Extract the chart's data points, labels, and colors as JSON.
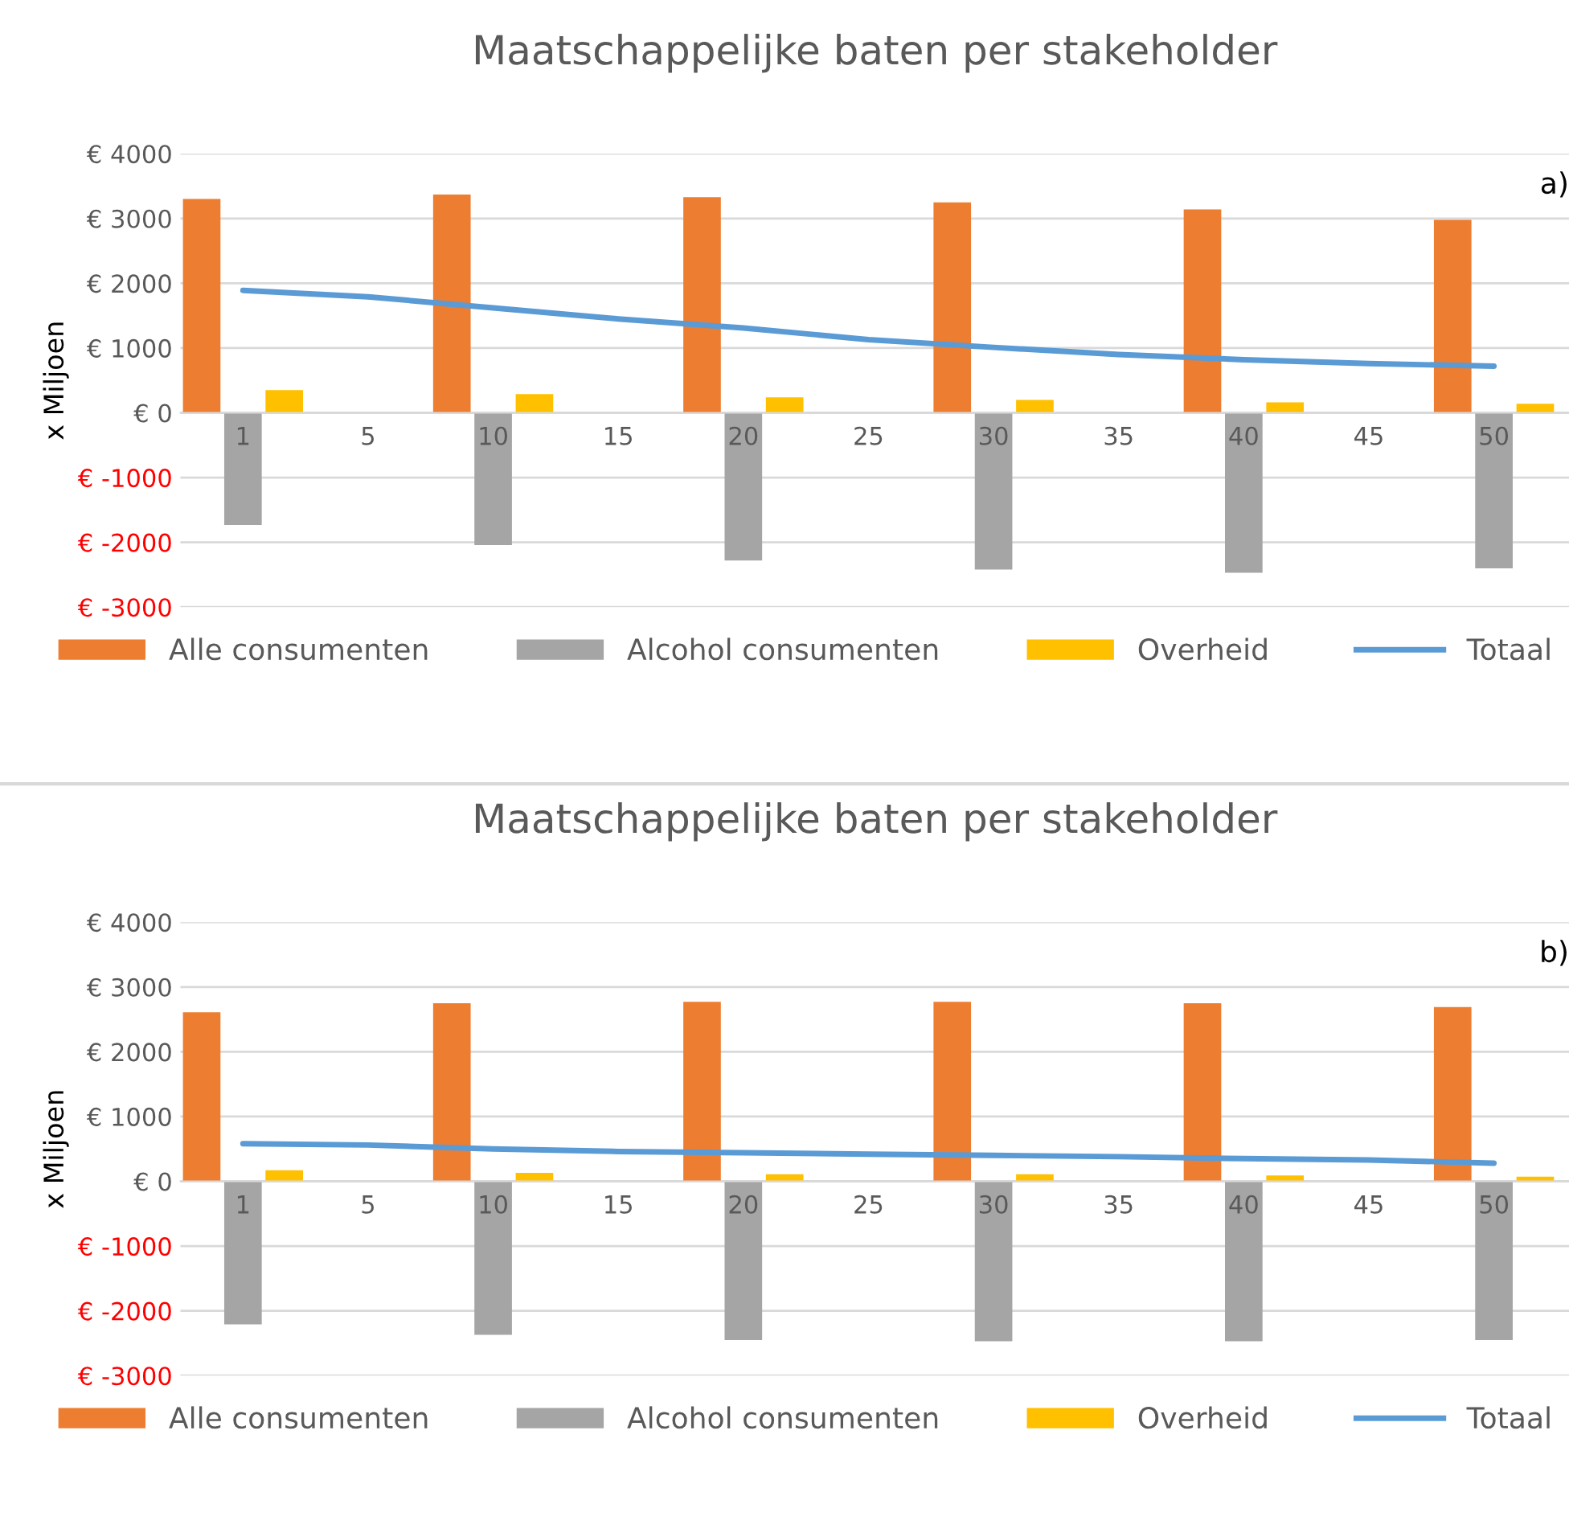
{
  "chart_data": [
    {
      "type": "bar",
      "title": "Maatschappelijke baten per stakeholder",
      "ylabel": "x Miljoen",
      "annotations": [
        "a)"
      ],
      "categories": [
        "1",
        "5",
        "10",
        "15",
        "20",
        "25",
        "30",
        "35",
        "40",
        "45",
        "50"
      ],
      "series": [
        {
          "name": "Alle consumenten",
          "color": "#ed7d31",
          "values": [
            3300,
            null,
            3370,
            null,
            3330,
            null,
            3250,
            null,
            3140,
            null,
            2980
          ]
        },
        {
          "name": "Alcohol consumenten",
          "color": "#a5a5a5",
          "values": [
            -1730,
            null,
            -2040,
            null,
            -2280,
            null,
            -2420,
            null,
            -2470,
            null,
            -2400
          ]
        },
        {
          "name": "Overheid",
          "color": "#ffc000",
          "values": [
            350,
            null,
            290,
            null,
            240,
            null,
            200,
            null,
            160,
            null,
            140
          ]
        },
        {
          "name": "Totaal",
          "type": "line",
          "color": "#5b9bd5",
          "values": [
            1890,
            1790,
            1620,
            1450,
            1310,
            1130,
            1010,
            900,
            820,
            760,
            720
          ]
        }
      ],
      "ylim": [
        -3000,
        4000
      ],
      "yticks": [
        {
          "value": -3000,
          "label": "€ -3000"
        },
        {
          "value": -2000,
          "label": "€ -2000"
        },
        {
          "value": -1000,
          "label": "€ -1000"
        },
        {
          "value": 0,
          "label": "€ 0"
        },
        {
          "value": 1000,
          "label": "€ 1000"
        },
        {
          "value": 2000,
          "label": "€ 2000"
        },
        {
          "value": 3000,
          "label": "€ 3000"
        },
        {
          "value": 4000,
          "label": "€ 4000"
        }
      ],
      "grid": "y",
      "legend": "bottom",
      "marker": "none",
      "line_style": "solid"
    },
    {
      "type": "bar",
      "title": "Maatschappelijke baten per stakeholder",
      "ylabel": "x Miljoen",
      "annotations": [
        "b)"
      ],
      "categories": [
        "1",
        "5",
        "10",
        "15",
        "20",
        "25",
        "30",
        "35",
        "40",
        "45",
        "50"
      ],
      "series": [
        {
          "name": "Alle consumenten",
          "color": "#ed7d31",
          "values": [
            2610,
            null,
            2750,
            null,
            2770,
            null,
            2770,
            null,
            2750,
            null,
            2690
          ]
        },
        {
          "name": "Alcohol consumenten",
          "color": "#a5a5a5",
          "values": [
            -2210,
            null,
            -2370,
            null,
            -2450,
            null,
            -2470,
            null,
            -2470,
            null,
            -2450
          ]
        },
        {
          "name": "Overheid",
          "color": "#ffc000",
          "values": [
            170,
            null,
            130,
            null,
            110,
            null,
            110,
            null,
            90,
            null,
            70
          ]
        },
        {
          "name": "Totaal",
          "type": "line",
          "color": "#5b9bd5",
          "values": [
            580,
            560,
            500,
            460,
            440,
            420,
            400,
            380,
            350,
            330,
            280
          ]
        }
      ],
      "ylim": [
        -3000,
        4000
      ],
      "yticks": [
        {
          "value": -3000,
          "label": "€ -3000"
        },
        {
          "value": -2000,
          "label": "€ -2000"
        },
        {
          "value": -1000,
          "label": "€ -1000"
        },
        {
          "value": 0,
          "label": "€ 0"
        },
        {
          "value": 1000,
          "label": "€ 1000"
        },
        {
          "value": 2000,
          "label": "€ 2000"
        },
        {
          "value": 3000,
          "label": "€ 3000"
        },
        {
          "value": 4000,
          "label": "€ 4000"
        }
      ],
      "grid": "y",
      "legend": "bottom",
      "marker": "none",
      "line_style": "solid"
    }
  ]
}
